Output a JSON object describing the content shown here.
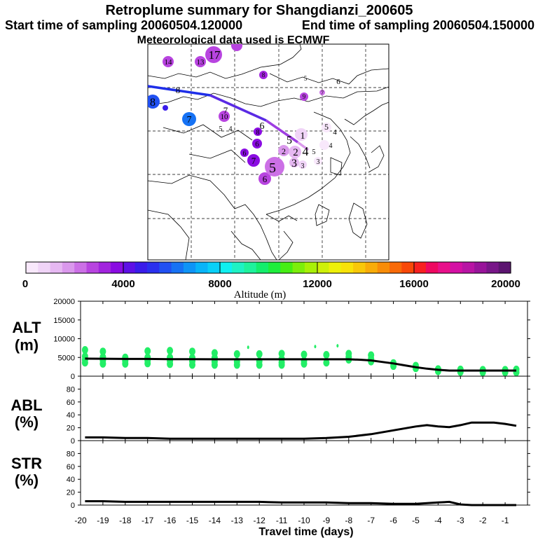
{
  "header": {
    "title": "Retroplume summary for Shangdianzi_200605",
    "start_label": "Start time of sampling 20060504.120000",
    "end_label": "End time of sampling 20060504.150000",
    "met_label": "Meteorological data used is ECMWF"
  },
  "colors": {
    "line": "#000000",
    "scatter": "#22ee66",
    "trajectory_blue": "#1e2ee8",
    "trajectory_violet": "#8e2ee0",
    "map_grid": "#000000"
  },
  "colorbar": {
    "ticks": [
      "0",
      "4000",
      "8000",
      "12000",
      "16000",
      "20000"
    ],
    "label": "Altitude (m)",
    "range": [
      0,
      20000
    ],
    "colors": [
      "#f8e8fb",
      "#f0d4f7",
      "#e6b8f2",
      "#da98ec",
      "#cc70e6",
      "#b844e0",
      "#a224de",
      "#8a0ce2",
      "#5e10e6",
      "#3a1cea",
      "#2a30ee",
      "#2050f2",
      "#1672f4",
      "#0e94f6",
      "#08b4f8",
      "#08d0f8",
      "#10f0f0",
      "#1ef2c4",
      "#1ef29c",
      "#14ee6c",
      "#1eee3c",
      "#46ee14",
      "#7cee0c",
      "#a8f008",
      "#cef008",
      "#eef008",
      "#f8e208",
      "#f8c808",
      "#f8ac08",
      "#f88c08",
      "#f86a08",
      "#f84808",
      "#f82020",
      "#ee0860",
      "#e8108a",
      "#d410a4",
      "#b814a4",
      "#98149a",
      "#781688",
      "#5c1470"
    ]
  },
  "map": {
    "clusters": [
      {
        "label": "1",
        "size": "small",
        "color": "#f0d4f7"
      },
      {
        "label": "2",
        "size": "medium",
        "color": "#da98ec"
      },
      {
        "label": "3",
        "size": "small",
        "color": "#e6b8f2"
      },
      {
        "label": "4",
        "size": "small",
        "color": "#f8e8fb"
      },
      {
        "label": "5",
        "size": "large",
        "color": "#cc70e6"
      },
      {
        "label": "6",
        "size": "medium",
        "color": "#a224de"
      },
      {
        "label": "7",
        "size": "medium",
        "color": "#1672f4"
      },
      {
        "label": "8",
        "size": "medium",
        "color": "#2050f2"
      },
      {
        "label": "13",
        "size": "small",
        "color": "#b844e0"
      },
      {
        "label": "14",
        "size": "small",
        "color": "#b844e0"
      },
      {
        "label": "17",
        "size": "medium",
        "color": "#b844e0"
      }
    ]
  },
  "panels": {
    "alt": {
      "label_line1": "ALT",
      "label_line2": "(m)"
    },
    "abl": {
      "label_line1": "ABL",
      "label_line2": "(%)"
    },
    "str": {
      "label_line1": "STR",
      "label_line2": "(%)"
    },
    "xlabel": "Travel time (days)"
  },
  "chart_data": [
    {
      "type": "line",
      "name": "ALT",
      "ylabel": "ALT (m)",
      "ylim": [
        0,
        20000
      ],
      "yticks": [
        "20000",
        "15000",
        "10000",
        "5000",
        "0"
      ],
      "xlim": [
        -20,
        0
      ],
      "x": [
        -19.8,
        -19,
        -18,
        -17,
        -16,
        -15,
        -14,
        -13,
        -12,
        -11,
        -10,
        -9,
        -8,
        -7.5,
        -7,
        -6.5,
        -6,
        -5.5,
        -5,
        -4.5,
        -4,
        -3.5,
        -3,
        -2.5,
        -2,
        -1.5,
        -1,
        -0.5
      ],
      "y": [
        4700,
        4650,
        4600,
        4600,
        4550,
        4550,
        4500,
        4500,
        4500,
        4500,
        4500,
        4500,
        4500,
        4400,
        4200,
        3800,
        3400,
        2900,
        2400,
        2000,
        1700,
        1500,
        1500,
        1500,
        1500,
        1500,
        1500,
        1500
      ],
      "scatter": {
        "x": [
          -19.8,
          -19.8,
          -19.8,
          -19.8,
          -19,
          -19,
          -19,
          -19,
          -18,
          -18,
          -18,
          -17,
          -17,
          -17,
          -17,
          -16,
          -16,
          -16,
          -16,
          -15,
          -15,
          -15,
          -15,
          -14,
          -14,
          -14,
          -14,
          -13,
          -13,
          -13,
          -12,
          -12,
          -12,
          -11,
          -11,
          -11,
          -11,
          -10,
          -10,
          -10,
          -9,
          -9,
          -8,
          -8,
          -8,
          -7,
          -7,
          -7,
          -6,
          -6,
          -5,
          -5,
          -4,
          -4,
          -3,
          -3,
          -2,
          -2,
          -1,
          -1,
          -0.5,
          -0.5,
          -12.5,
          -9.5,
          -8.5
        ],
        "y": [
          3600,
          4400,
          5300,
          7000,
          3300,
          4200,
          5100,
          6600,
          3300,
          4100,
          5000,
          3400,
          4200,
          5000,
          6700,
          3200,
          4100,
          5000,
          6800,
          3000,
          4000,
          4900,
          6600,
          3000,
          3900,
          4900,
          6200,
          3000,
          3900,
          5900,
          3000,
          4000,
          5900,
          3000,
          3700,
          4600,
          6000,
          3300,
          4100,
          5800,
          3600,
          5700,
          4400,
          5100,
          6000,
          3900,
          4600,
          5600,
          2700,
          3500,
          2100,
          2800,
          1300,
          1900,
          1100,
          1800,
          1000,
          1700,
          1000,
          1700,
          1000,
          1800,
          7700,
          7900,
          8100
        ]
      }
    },
    {
      "type": "line",
      "name": "ABL",
      "ylabel": "ABL (%)",
      "ylim": [
        0,
        100
      ],
      "yticks": [
        "100",
        "80",
        "60",
        "40",
        "20",
        "0"
      ],
      "xlim": [
        -20,
        0
      ],
      "x": [
        -19.8,
        -19,
        -18,
        -17,
        -16,
        -15,
        -14,
        -13,
        -12,
        -11,
        -10,
        -9,
        -8,
        -7,
        -6,
        -5,
        -4.5,
        -4,
        -3.5,
        -3,
        -2.5,
        -2,
        -1.5,
        -1,
        -0.5
      ],
      "y": [
        5,
        5,
        4,
        4,
        3,
        3,
        3,
        3,
        3,
        3,
        3,
        4,
        6,
        10,
        16,
        22,
        24,
        22,
        21,
        24,
        28,
        28,
        28,
        26,
        23
      ]
    },
    {
      "type": "line",
      "name": "STR",
      "ylabel": "STR (%)",
      "ylim": [
        0,
        100
      ],
      "yticks": [
        "100",
        "80",
        "60",
        "40",
        "20",
        "0"
      ],
      "xlim": [
        -20,
        0
      ],
      "x": [
        -19.8,
        -19,
        -18,
        -17,
        -16,
        -15,
        -14,
        -13,
        -12,
        -11,
        -10,
        -9,
        -8,
        -7,
        -6,
        -5,
        -4.5,
        -4,
        -3.5,
        -3,
        -2.5,
        -2,
        -1.5,
        -1,
        -0.5
      ],
      "y": [
        6,
        6,
        5,
        5,
        5,
        5,
        5,
        5,
        5,
        4,
        4,
        4,
        3,
        3,
        2,
        2,
        3,
        4,
        5,
        1,
        0,
        0,
        0,
        0,
        0
      ],
      "xticks": [
        "-20",
        "-19",
        "-18",
        "-17",
        "-16",
        "-15",
        "-14",
        "-13",
        "-12",
        "-11",
        "-10",
        "-9",
        "-8",
        "-7",
        "-6",
        "-5",
        "-4",
        "-3",
        "-2",
        "-1"
      ],
      "xlabel": "Travel time (days)"
    }
  ]
}
